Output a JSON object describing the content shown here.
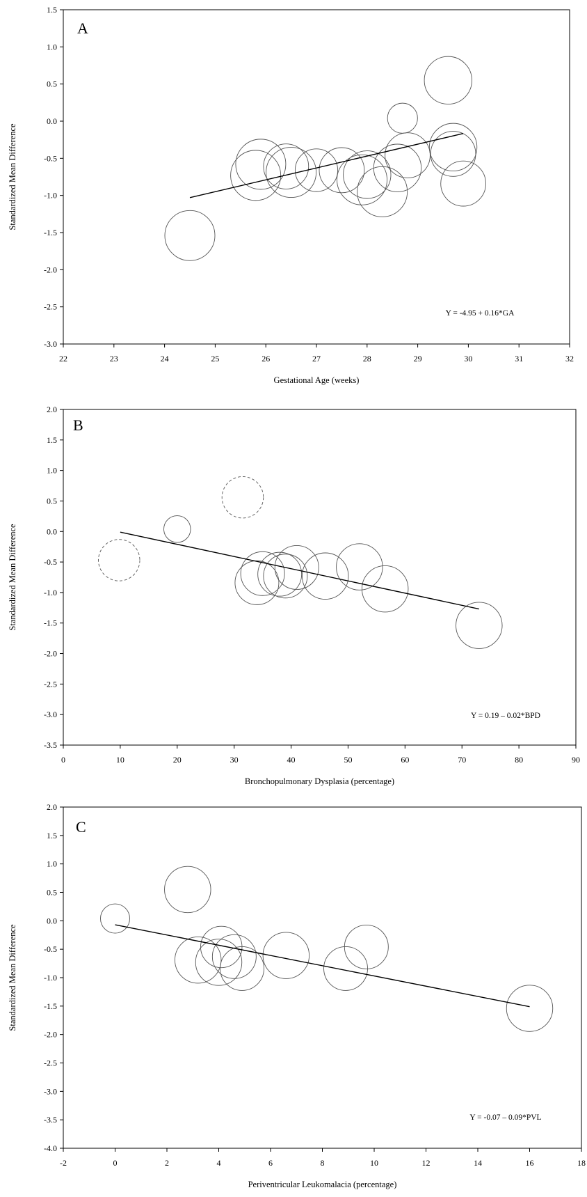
{
  "chart_data": [
    {
      "type": "scatter",
      "panel": "A",
      "xlabel": "Gestational Age (weeks)",
      "ylabel": "Standardized Mean Difference",
      "xlim": [
        22,
        32
      ],
      "ylim": [
        -3.0,
        1.5
      ],
      "xticks": [
        "22",
        "23",
        "24",
        "25",
        "26",
        "27",
        "28",
        "29",
        "30",
        "31",
        "32"
      ],
      "yticks": [
        "-3.0",
        "-2.5",
        "-2.0",
        "-1.5",
        "-1.0",
        "-0.5",
        "0.0",
        "0.5",
        "1.0",
        "1.5"
      ],
      "equation": "Y = -4.95 + 0.16*GA",
      "fit": {
        "intercept": -4.95,
        "slope": 0.16,
        "x_range": [
          24.5,
          29.9
        ]
      },
      "grid": false,
      "points": [
        {
          "x": 24.5,
          "y": -1.54,
          "size": 1.0,
          "style": "solid"
        },
        {
          "x": 25.8,
          "y": -0.73,
          "size": 1.0,
          "style": "solid"
        },
        {
          "x": 25.9,
          "y": -0.58,
          "size": 1.0,
          "style": "solid"
        },
        {
          "x": 26.4,
          "y": -0.61,
          "size": 0.9,
          "style": "solid"
        },
        {
          "x": 26.5,
          "y": -0.69,
          "size": 1.0,
          "style": "solid"
        },
        {
          "x": 27.0,
          "y": -0.66,
          "size": 0.85,
          "style": "solid"
        },
        {
          "x": 27.5,
          "y": -0.66,
          "size": 0.9,
          "style": "solid"
        },
        {
          "x": 27.9,
          "y": -0.79,
          "size": 1.0,
          "style": "solid"
        },
        {
          "x": 28.0,
          "y": -0.72,
          "size": 0.95,
          "style": "solid"
        },
        {
          "x": 28.3,
          "y": -0.95,
          "size": 1.0,
          "style": "solid"
        },
        {
          "x": 28.6,
          "y": -0.63,
          "size": 0.95,
          "style": "solid"
        },
        {
          "x": 28.8,
          "y": -0.46,
          "size": 0.9,
          "style": "solid"
        },
        {
          "x": 28.7,
          "y": 0.04,
          "size": 0.6,
          "style": "solid"
        },
        {
          "x": 29.6,
          "y": 0.55,
          "size": 0.95,
          "style": "solid"
        },
        {
          "x": 29.7,
          "y": -0.35,
          "size": 0.95,
          "style": "solid"
        },
        {
          "x": 29.7,
          "y": -0.44,
          "size": 0.9,
          "style": "solid"
        },
        {
          "x": 29.9,
          "y": -0.84,
          "size": 0.9,
          "style": "solid"
        }
      ]
    },
    {
      "type": "scatter",
      "panel": "B",
      "xlabel": "Bronchopulmonary Dysplasia (percentage)",
      "ylabel": "Standardized Mean Difference",
      "xlim": [
        0,
        90
      ],
      "ylim": [
        -3.5,
        2.0
      ],
      "xticks": [
        "0",
        "10",
        "20",
        "30",
        "40",
        "50",
        "60",
        "70",
        "80",
        "90"
      ],
      "yticks": [
        "-3.5",
        "-3.0",
        "-2.5",
        "-2.0",
        "-1.5",
        "-1.0",
        "-0.5",
        "0.0",
        "0.5",
        "1.0",
        "1.5",
        "2.0"
      ],
      "equation": "Y = 0.19 – 0.02*BPD",
      "fit": {
        "intercept": 0.19,
        "slope": -0.02,
        "x_range": [
          10,
          73
        ]
      },
      "grid": false,
      "points": [
        {
          "x": 9.8,
          "y": -0.47,
          "size": 0.85,
          "style": "dashed"
        },
        {
          "x": 31.5,
          "y": 0.56,
          "size": 0.85,
          "style": "dashed"
        },
        {
          "x": 20.0,
          "y": 0.04,
          "size": 0.55,
          "style": "solid"
        },
        {
          "x": 34.0,
          "y": -0.84,
          "size": 0.9,
          "style": "solid"
        },
        {
          "x": 35.0,
          "y": -0.69,
          "size": 0.9,
          "style": "solid"
        },
        {
          "x": 38.0,
          "y": -0.7,
          "size": 0.9,
          "style": "solid"
        },
        {
          "x": 39.0,
          "y": -0.73,
          "size": 0.9,
          "style": "solid"
        },
        {
          "x": 41.0,
          "y": -0.59,
          "size": 0.9,
          "style": "solid"
        },
        {
          "x": 46.0,
          "y": -0.73,
          "size": 0.95,
          "style": "solid"
        },
        {
          "x": 52.0,
          "y": -0.58,
          "size": 0.95,
          "style": "solid"
        },
        {
          "x": 56.5,
          "y": -0.94,
          "size": 0.95,
          "style": "solid"
        },
        {
          "x": 73.0,
          "y": -1.54,
          "size": 0.95,
          "style": "solid"
        }
      ]
    },
    {
      "type": "scatter",
      "panel": "C",
      "xlabel": "Periventricular Leukomalacia (percentage)",
      "ylabel": "Standardized Mean Difference",
      "xlim": [
        -2,
        18
      ],
      "ylim": [
        -4.0,
        2.0
      ],
      "xticks": [
        "-2",
        "0",
        "2",
        "4",
        "6",
        "8",
        "10",
        "12",
        "14",
        "16",
        "18"
      ],
      "yticks": [
        "-4.0",
        "-3.5",
        "-3.0",
        "-2.5",
        "-2.0",
        "-1.5",
        "-1.0",
        "-0.5",
        "0.0",
        "0.5",
        "1.0",
        "1.5",
        "2.0"
      ],
      "equation": "Y = -0.07 – 0.09*PVL",
      "fit": {
        "intercept": -0.07,
        "slope": -0.09,
        "x_range": [
          0,
          16
        ]
      },
      "grid": false,
      "points": [
        {
          "x": 0.0,
          "y": 0.04,
          "size": 0.6,
          "style": "solid"
        },
        {
          "x": 2.8,
          "y": 0.55,
          "size": 0.95,
          "style": "solid"
        },
        {
          "x": 3.2,
          "y": -0.69,
          "size": 0.95,
          "style": "solid"
        },
        {
          "x": 4.0,
          "y": -0.73,
          "size": 0.95,
          "style": "solid"
        },
        {
          "x": 4.1,
          "y": -0.46,
          "size": 0.85,
          "style": "solid"
        },
        {
          "x": 4.6,
          "y": -0.63,
          "size": 0.9,
          "style": "solid"
        },
        {
          "x": 4.9,
          "y": -0.84,
          "size": 0.9,
          "style": "solid"
        },
        {
          "x": 6.6,
          "y": -0.61,
          "size": 0.95,
          "style": "solid"
        },
        {
          "x": 8.9,
          "y": -0.84,
          "size": 0.9,
          "style": "solid"
        },
        {
          "x": 9.7,
          "y": -0.46,
          "size": 0.9,
          "style": "solid"
        },
        {
          "x": 16.0,
          "y": -1.54,
          "size": 0.95,
          "style": "solid"
        }
      ]
    }
  ]
}
